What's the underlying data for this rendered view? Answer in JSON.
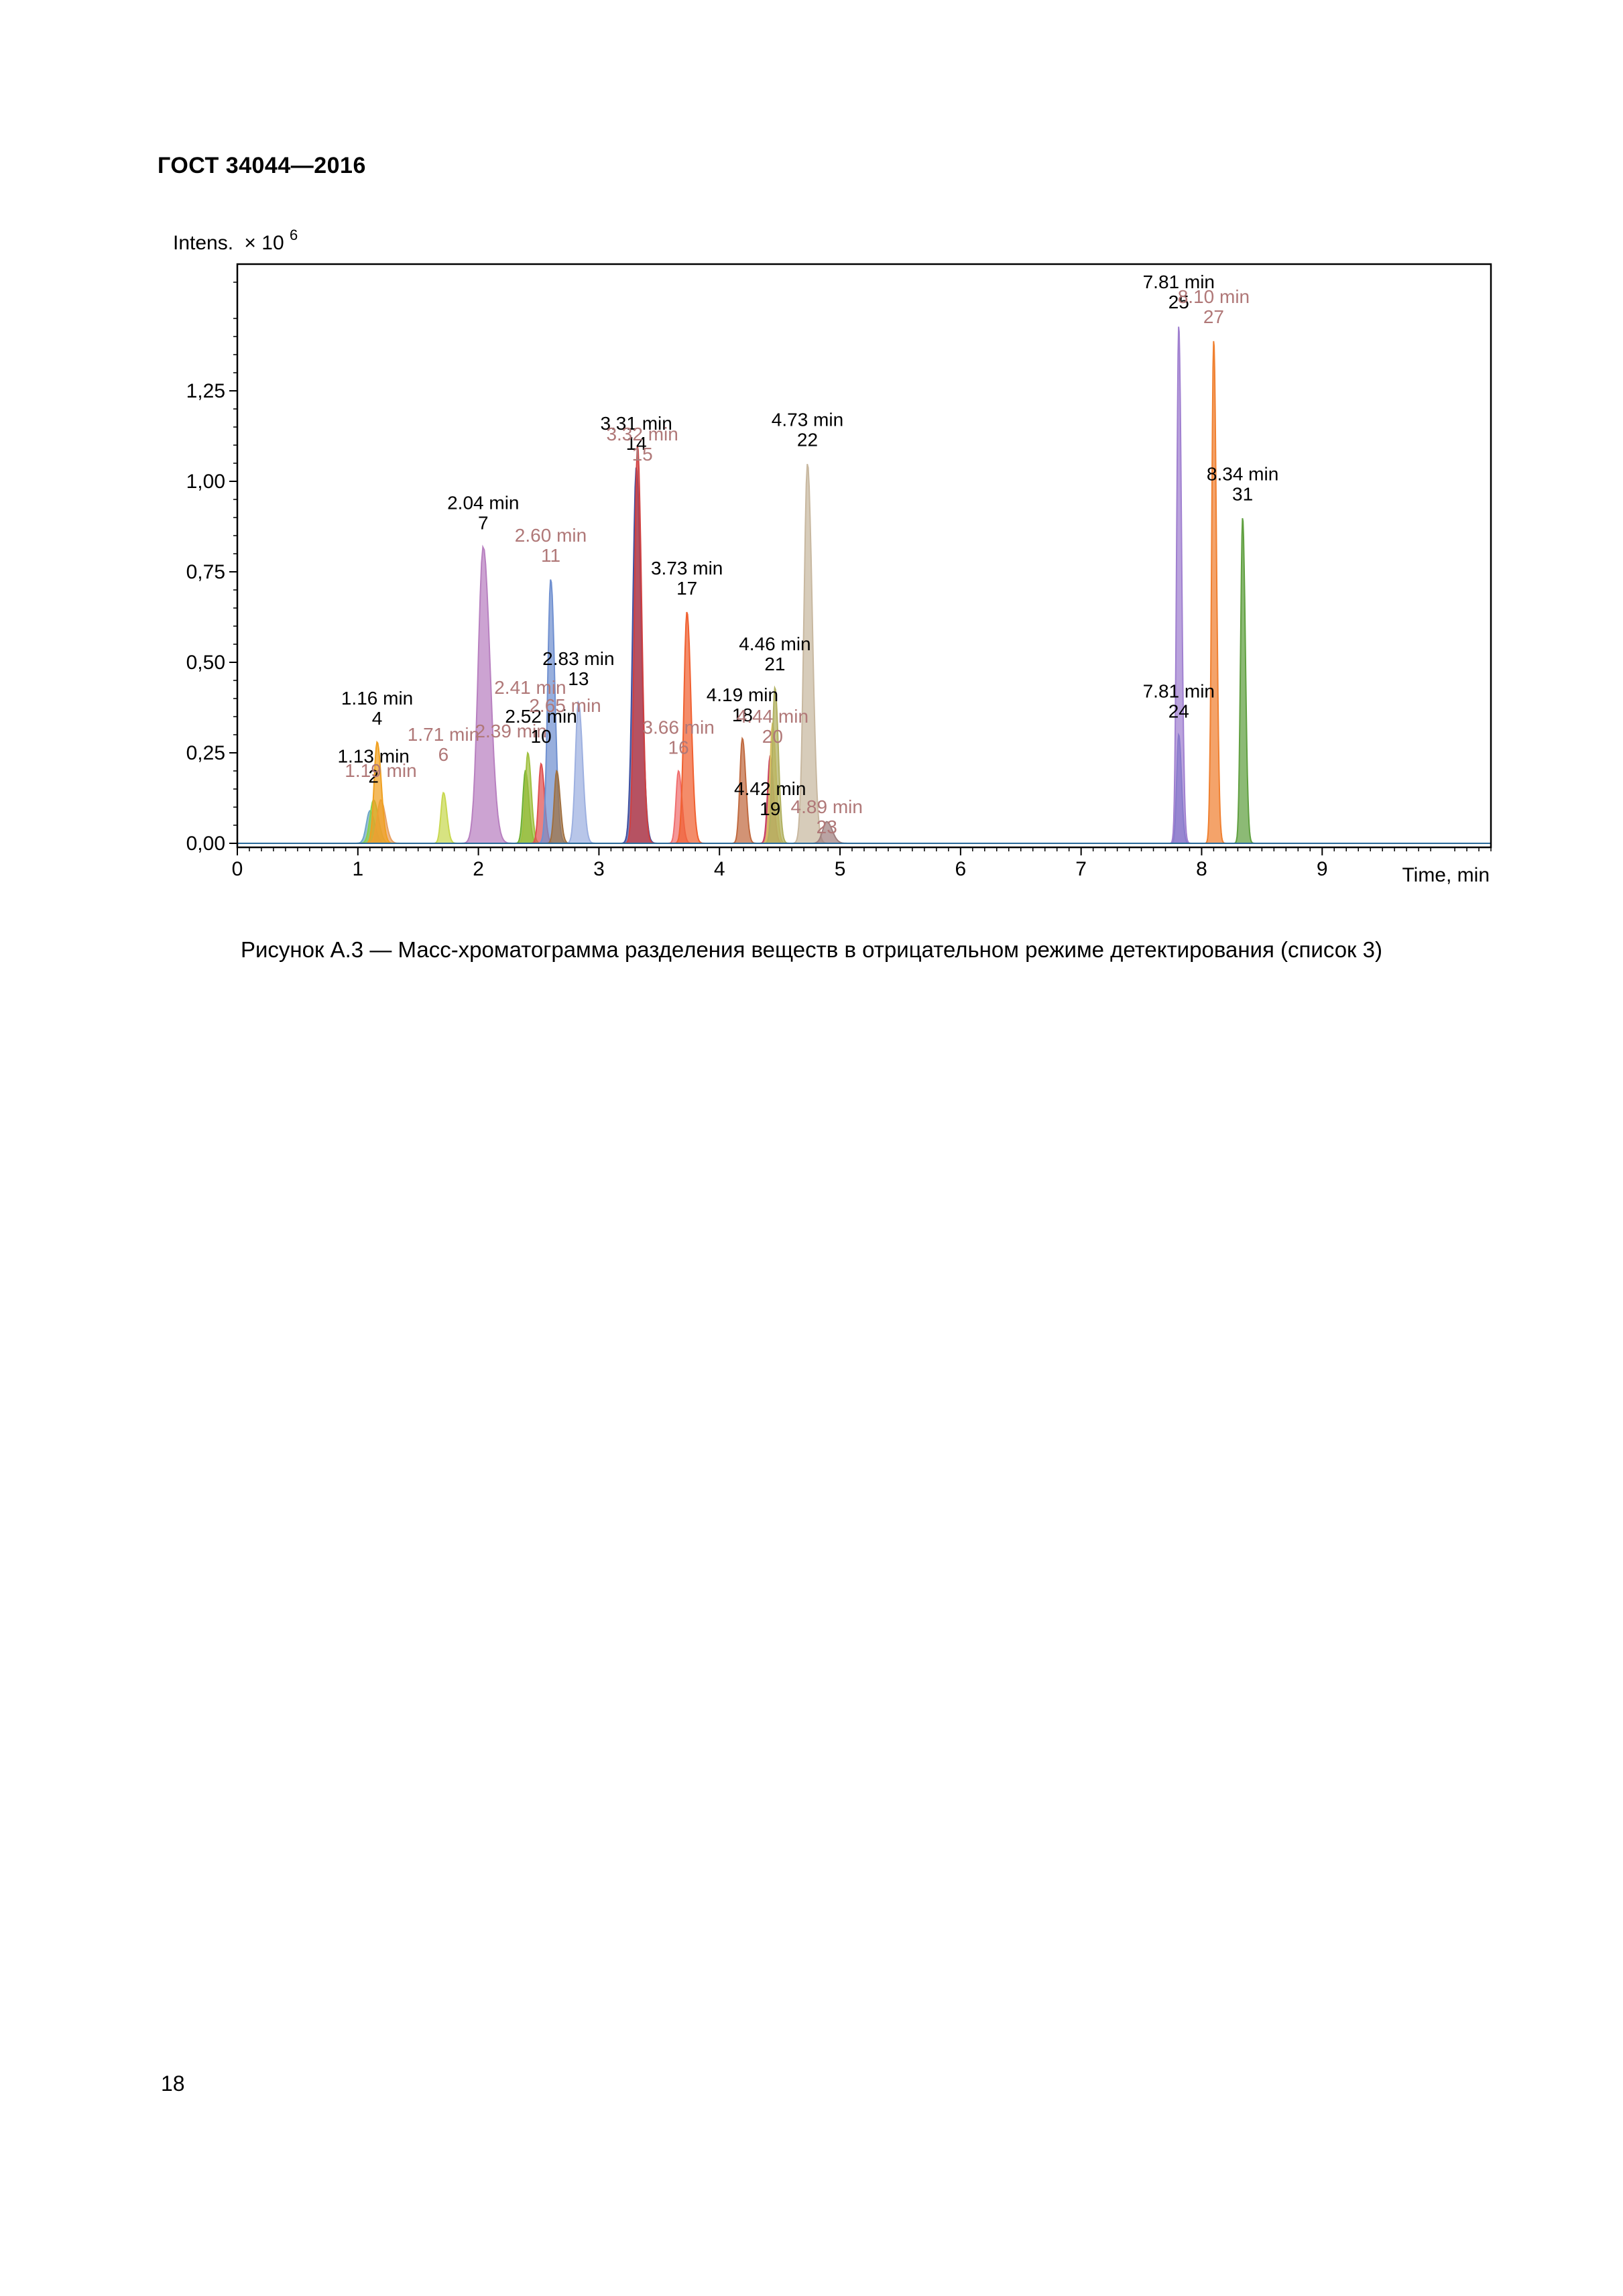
{
  "document": {
    "header": "ГОСТ 34044—2016",
    "caption": "Рисунок А.3 — Масс-хроматограмма разделения веществ в отрицательном режиме детектирования (список 3)",
    "page_number": "18"
  },
  "chart_data": {
    "type": "area",
    "title": "",
    "xlabel": "Time, min",
    "ylabel": "Intens.",
    "ylabel_multiplier": "× 10",
    "ylabel_exponent": "6",
    "xlim": [
      0,
      10.4
    ],
    "ylim": [
      0,
      1.6
    ],
    "xticks": [
      "0",
      "1",
      "2",
      "3",
      "4",
      "5",
      "6",
      "7",
      "8",
      "9"
    ],
    "yticks": [
      "0,00",
      "0,25",
      "0,50",
      "0,75",
      "1,00",
      "1,25"
    ],
    "grid": false,
    "peaks": [
      {
        "id": "1",
        "rt": 1.1,
        "height": 0.09,
        "width": 0.07,
        "color": "#6fa8c8"
      },
      {
        "id": "2",
        "rt": 1.13,
        "height": 0.12,
        "width": 0.07,
        "color": "#8ad04a"
      },
      {
        "id": "3",
        "rt": 1.19,
        "height": 0.12,
        "width": 0.07,
        "color": "#e8a060"
      },
      {
        "id": "4",
        "rt": 1.16,
        "height": 0.28,
        "width": 0.06,
        "color": "#f0a020"
      },
      {
        "id": "6",
        "rt": 1.71,
        "height": 0.14,
        "width": 0.05,
        "color": "#c8d850"
      },
      {
        "id": "7",
        "rt": 2.04,
        "height": 0.82,
        "width": 0.1,
        "color": "#b880c0"
      },
      {
        "id": "8",
        "rt": 2.39,
        "height": 0.2,
        "width": 0.05,
        "color": "#70b030"
      },
      {
        "id": "9",
        "rt": 2.41,
        "height": 0.25,
        "width": 0.05,
        "color": "#a0c040"
      },
      {
        "id": "10",
        "rt": 2.52,
        "height": 0.22,
        "width": 0.05,
        "color": "#e05050"
      },
      {
        "id": "11",
        "rt": 2.6,
        "height": 0.73,
        "width": 0.06,
        "color": "#7090d0"
      },
      {
        "id": "12",
        "rt": 2.65,
        "height": 0.2,
        "width": 0.05,
        "color": "#a07040"
      },
      {
        "id": "13",
        "rt": 2.83,
        "height": 0.39,
        "width": 0.06,
        "color": "#9db0e0"
      },
      {
        "id": "14",
        "rt": 3.31,
        "height": 1.04,
        "width": 0.07,
        "color": "#4050a0"
      },
      {
        "id": "15",
        "rt": 3.32,
        "height": 1.1,
        "width": 0.06,
        "color": "#d04040"
      },
      {
        "id": "16",
        "rt": 3.66,
        "height": 0.2,
        "width": 0.05,
        "color": "#f07070"
      },
      {
        "id": "17",
        "rt": 3.73,
        "height": 0.64,
        "width": 0.06,
        "color": "#f06030"
      },
      {
        "id": "18",
        "rt": 4.19,
        "height": 0.29,
        "width": 0.05,
        "color": "#c06a40"
      },
      {
        "id": "19",
        "rt": 4.42,
        "height": 0.24,
        "width": 0.05,
        "color": "#c84060"
      },
      {
        "id": "20",
        "rt": 4.44,
        "height": 0.33,
        "width": 0.05,
        "color": "#d8c060"
      },
      {
        "id": "21",
        "rt": 4.46,
        "height": 0.43,
        "width": 0.05,
        "color": "#b0b060"
      },
      {
        "id": "22",
        "rt": 4.73,
        "height": 1.05,
        "width": 0.07,
        "color": "#c8b8a0"
      },
      {
        "id": "23",
        "rt": 4.89,
        "height": 0.06,
        "width": 0.08,
        "color": "#a08080"
      },
      {
        "id": "24",
        "rt": 7.81,
        "height": 0.3,
        "width": 0.04,
        "color": "#5070c0"
      },
      {
        "id": "25",
        "rt": 7.81,
        "height": 1.43,
        "width": 0.04,
        "color": "#a080d0"
      },
      {
        "id": "27",
        "rt": 8.1,
        "height": 1.39,
        "width": 0.04,
        "color": "#f08030"
      },
      {
        "id": "31",
        "rt": 8.34,
        "height": 0.9,
        "width": 0.04,
        "color": "#60a040"
      }
    ],
    "annotations": [
      {
        "time": "1.16 min",
        "peak": "4",
        "rt": 1.16,
        "y": 0.32,
        "color": "#000000"
      },
      {
        "time": "1.13 min",
        "peak": "2",
        "rt": 1.13,
        "y": 0.16,
        "color": "#000000"
      },
      {
        "time": "1.19 min",
        "peak": "",
        "rt": 1.19,
        "y": 0.12,
        "color": "#b07878"
      },
      {
        "time": "1.71 min",
        "peak": "6",
        "rt": 1.71,
        "y": 0.22,
        "color": "#b07878"
      },
      {
        "time": "2.04 min",
        "peak": "7",
        "rt": 2.04,
        "y": 0.86,
        "color": "#000000"
      },
      {
        "time": "2.39 min",
        "peak": "",
        "rt": 2.27,
        "y": 0.23,
        "color": "#b07878"
      },
      {
        "time": "2.41 min",
        "peak": "",
        "rt": 2.43,
        "y": 0.35,
        "color": "#b07878"
      },
      {
        "time": "2.52 min",
        "peak": "10",
        "rt": 2.52,
        "y": 0.27,
        "color": "#000000"
      },
      {
        "time": "2.65 min",
        "peak": "",
        "rt": 2.72,
        "y": 0.3,
        "color": "#b07878"
      },
      {
        "time": "2.60 min",
        "peak": "11",
        "rt": 2.6,
        "y": 0.77,
        "color": "#b07878"
      },
      {
        "time": "2.83 min",
        "peak": "13",
        "rt": 2.83,
        "y": 0.43,
        "color": "#000000"
      },
      {
        "time": "3.31 min",
        "peak": "14",
        "rt": 3.31,
        "y": 1.08,
        "color": "#000000"
      },
      {
        "time": "3.32 min",
        "peak": "15",
        "rt": 3.36,
        "y": 1.05,
        "color": "#b07878"
      },
      {
        "time": "3.66 min",
        "peak": "16",
        "rt": 3.66,
        "y": 0.24,
        "color": "#b07878"
      },
      {
        "time": "3.73 min",
        "peak": "17",
        "rt": 3.73,
        "y": 0.68,
        "color": "#000000"
      },
      {
        "time": "4.19 min",
        "peak": "18",
        "rt": 4.19,
        "y": 0.33,
        "color": "#000000"
      },
      {
        "time": "4.42 min",
        "peak": "19",
        "rt": 4.42,
        "y": 0.07,
        "color": "#000000"
      },
      {
        "time": "4.44 min",
        "peak": "20",
        "rt": 4.44,
        "y": 0.27,
        "color": "#b07878"
      },
      {
        "time": "4.46 min",
        "peak": "21",
        "rt": 4.46,
        "y": 0.47,
        "color": "#000000"
      },
      {
        "time": "4.73 min",
        "peak": "22",
        "rt": 4.73,
        "y": 1.09,
        "color": "#000000"
      },
      {
        "time": "4.89 min",
        "peak": "23",
        "rt": 4.89,
        "y": 0.02,
        "color": "#b07878"
      },
      {
        "time": "7.81 min",
        "peak": "24",
        "rt": 7.81,
        "y": 0.34,
        "color": "#000000"
      },
      {
        "time": "7.81 min",
        "peak": "25",
        "rt": 7.81,
        "y": 1.47,
        "color": "#000000"
      },
      {
        "time": "8.10 min",
        "peak": "27",
        "rt": 8.1,
        "y": 1.43,
        "color": "#b07878"
      },
      {
        "time": "8.34 min",
        "peak": "31",
        "rt": 8.34,
        "y": 0.94,
        "color": "#000000"
      }
    ]
  }
}
